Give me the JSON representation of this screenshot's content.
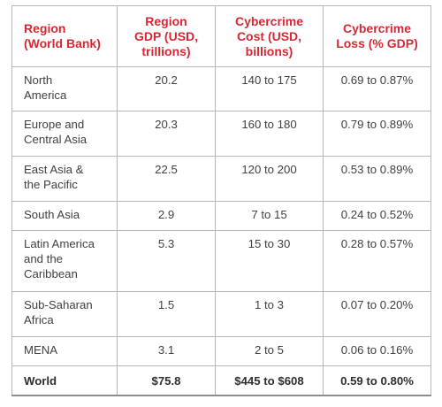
{
  "table": {
    "headers": [
      "Region (World Bank)",
      "Region GDP (USD, trillions)",
      "Cybercrime Cost (USD, billions)",
      "Cybercrime Loss (% GDP)"
    ],
    "header_lines": [
      [
        "Region",
        "(World Bank)"
      ],
      [
        "Region",
        "GDP (USD,",
        "trillions)"
      ],
      [
        "Cybercrime",
        "Cost (USD,",
        "billions)"
      ],
      [
        "Cybercrime",
        "Loss (% GDP)"
      ]
    ],
    "rows": [
      {
        "region_lines": [
          "North",
          "America"
        ],
        "gdp": "20.2",
        "cost": "140 to 175",
        "loss": "0.69 to 0.87%"
      },
      {
        "region_lines": [
          "Europe and",
          "Central Asia"
        ],
        "gdp": "20.3",
        "cost": "160 to 180",
        "loss": "0.79 to 0.89%"
      },
      {
        "region_lines": [
          "East Asia &",
          "the Pacific"
        ],
        "gdp": "22.5",
        "cost": "120 to 200",
        "loss": "0.53 to 0.89%"
      },
      {
        "region_lines": [
          "South Asia"
        ],
        "gdp": "2.9",
        "cost": "7 to 15",
        "loss": "0.24 to 0.52%"
      },
      {
        "region_lines": [
          "Latin America",
          "and the",
          "Caribbean"
        ],
        "gdp": "5.3",
        "cost": "15 to 30",
        "loss": "0.28 to 0.57%"
      },
      {
        "region_lines": [
          "Sub-Saharan",
          "Africa"
        ],
        "gdp": "1.5",
        "cost": "1 to 3",
        "loss": "0.07 to 0.20%"
      },
      {
        "region_lines": [
          "MENA"
        ],
        "gdp": "3.1",
        "cost": "2 to 5",
        "loss": "0.06 to 0.16%"
      }
    ],
    "total": {
      "region": "World",
      "gdp": "$75.8",
      "cost": "$445 to $608",
      "loss": "0.59 to 0.80%"
    }
  },
  "colors": {
    "header_text": "#d62834",
    "body_text": "#404040",
    "border": "#b7b7b7"
  }
}
